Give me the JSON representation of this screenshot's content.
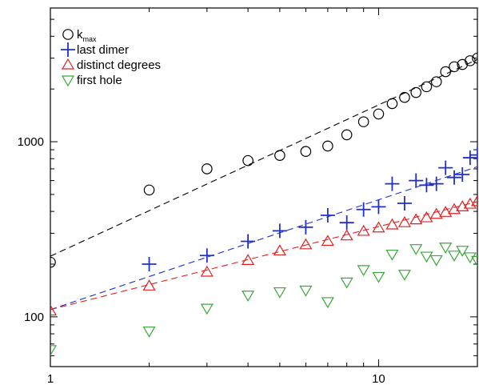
{
  "chart_data": {
    "type": "scatter",
    "x_scale": "log",
    "y_scale": "log",
    "xlim": [
      1,
      20
    ],
    "ylim": [
      52,
      5800
    ],
    "x_major_ticks": [
      1,
      10
    ],
    "x_tick_labels": [
      "1",
      "10"
    ],
    "y_major_ticks": [
      100,
      1000
    ],
    "y_tick_labels": [
      "100",
      "1000"
    ],
    "grid": false,
    "legend_position": "top-left",
    "colors": {
      "k_max": "#000000",
      "last_dimer": "#1f2fcf",
      "distinct_degrees": "#e02020",
      "first_hole": "#3aa83a"
    },
    "series": [
      {
        "name": "k",
        "name_subscript": "max",
        "marker": "circle-icon",
        "color": "#000000",
        "points": [
          [
            1,
            205
          ],
          [
            2,
            530
          ],
          [
            3,
            700
          ],
          [
            4,
            780
          ],
          [
            5,
            835
          ],
          [
            6,
            880
          ],
          [
            7,
            945
          ],
          [
            8,
            1095
          ],
          [
            9,
            1300
          ],
          [
            10,
            1440
          ],
          [
            11,
            1650
          ],
          [
            12,
            1790
          ],
          [
            13,
            1910
          ],
          [
            14,
            2060
          ],
          [
            15,
            2200
          ],
          [
            16,
            2510
          ],
          [
            17,
            2680
          ],
          [
            18,
            2760
          ],
          [
            19,
            2900
          ],
          [
            20,
            3000
          ]
        ]
      },
      {
        "name": "last dimer",
        "marker": "plus-icon",
        "color": "#1f2fcf",
        "points": [
          [
            2,
            200
          ],
          [
            3,
            224
          ],
          [
            4,
            270
          ],
          [
            5,
            310
          ],
          [
            6,
            325
          ],
          [
            7,
            380
          ],
          [
            8,
            345
          ],
          [
            9,
            410
          ],
          [
            10,
            425
          ],
          [
            11,
            575
          ],
          [
            12,
            445
          ],
          [
            13,
            600
          ],
          [
            14,
            565
          ],
          [
            15,
            575
          ],
          [
            16,
            710
          ],
          [
            17,
            625
          ],
          [
            18,
            650
          ],
          [
            19,
            810
          ],
          [
            20,
            840
          ]
        ]
      },
      {
        "name": "distinct degrees",
        "marker": "triangle-up-icon",
        "color": "#e02020",
        "points": [
          [
            1,
            108
          ],
          [
            2,
            150
          ],
          [
            3,
            180
          ],
          [
            4,
            210
          ],
          [
            5,
            238
          ],
          [
            6,
            258
          ],
          [
            7,
            270
          ],
          [
            8,
            290
          ],
          [
            9,
            308
          ],
          [
            10,
            322
          ],
          [
            11,
            335
          ],
          [
            12,
            345
          ],
          [
            13,
            358
          ],
          [
            14,
            368
          ],
          [
            15,
            385
          ],
          [
            16,
            395
          ],
          [
            17,
            410
          ],
          [
            18,
            425
          ],
          [
            19,
            440
          ],
          [
            20,
            455
          ]
        ]
      },
      {
        "name": "first hole",
        "marker": "triangle-down-icon",
        "color": "#3aa83a",
        "points": [
          [
            1,
            65
          ],
          [
            2,
            83
          ],
          [
            3,
            112
          ],
          [
            4,
            133
          ],
          [
            5,
            139
          ],
          [
            6,
            142
          ],
          [
            7,
            122
          ],
          [
            8,
            158
          ],
          [
            9,
            186
          ],
          [
            10,
            170
          ],
          [
            11,
            228
          ],
          [
            12,
            175
          ],
          [
            13,
            245
          ],
          [
            14,
            222
          ],
          [
            15,
            212
          ],
          [
            16,
            250
          ],
          [
            17,
            225
          ],
          [
            18,
            240
          ],
          [
            19,
            220
          ],
          [
            20,
            210
          ]
        ]
      }
    ],
    "fit_lines": [
      {
        "series": "k_max",
        "style": "dashed",
        "color": "#000000",
        "from": [
          1,
          222
        ],
        "to": [
          20,
          2950
        ]
      },
      {
        "series": "last_dimer",
        "style": "dashed",
        "color": "#1f2fcf",
        "from": [
          1,
          110
        ],
        "to": [
          20,
          720
        ]
      },
      {
        "series": "distinct_degrees",
        "style": "dashed",
        "color": "#e02020",
        "from": [
          1,
          110
        ],
        "to": [
          20,
          455
        ]
      }
    ]
  }
}
